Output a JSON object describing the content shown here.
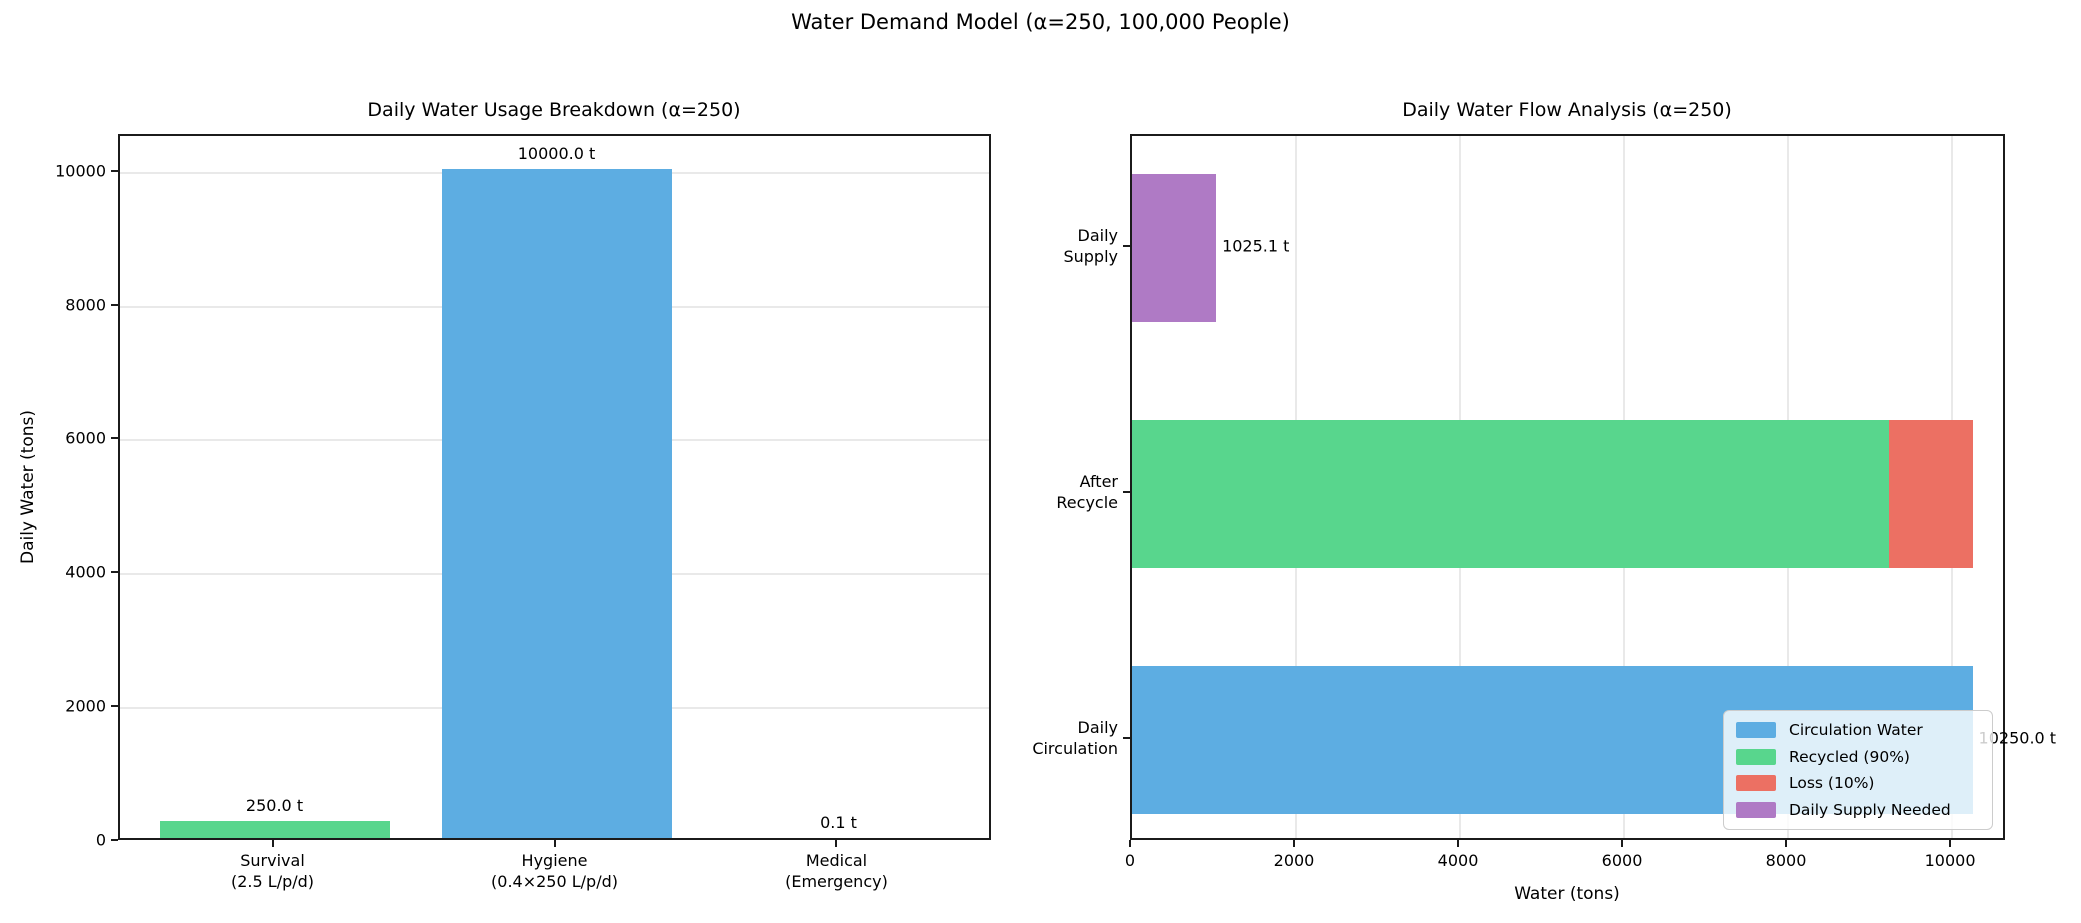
{
  "figure": {
    "title": "Water Demand Model (α=250, 100,000 People)",
    "background": "#ffffff"
  },
  "colors": {
    "blue": "#5DADE2",
    "green": "#58D68D",
    "red": "#EC7063",
    "purple": "#AF7AC5",
    "grid": "#e9e9e9",
    "spine": "#1b1b1b"
  },
  "chart_data": [
    {
      "type": "bar",
      "title": "Daily Water Usage Breakdown (α=250)",
      "xlabel": "",
      "ylabel": "Daily Water (tons)",
      "categories": [
        "Survival\n(2.5 L/p/d)",
        "Hygiene\n(0.4×250 L/p/d)",
        "Medical\n(Emergency)"
      ],
      "values": [
        250.0,
        10000.0,
        0.1
      ],
      "bar_labels": [
        "250.0 t",
        "10000.0 t",
        "0.1 t"
      ],
      "bar_colors": [
        "#58D68D",
        "#5DADE2",
        "#EC7063"
      ],
      "yticks": [
        0,
        2000,
        4000,
        6000,
        8000,
        10000
      ],
      "ylim": [
        0,
        10550
      ],
      "grid": "horizontal",
      "legend": null
    },
    {
      "type": "barh-stacked",
      "title": "Daily Water Flow Analysis (α=250)",
      "xlabel": "Water (tons)",
      "ylabel": "",
      "rows": [
        {
          "category": "Daily\nSupply",
          "segments": [
            {
              "label": "Daily Supply Needed",
              "value": 1025.1,
              "color": "#AF7AC5"
            }
          ],
          "value_label": "1025.1 t"
        },
        {
          "category": "After\nRecycle",
          "segments": [
            {
              "label": "Recycled (90%)",
              "value": 9225.0,
              "color": "#58D68D"
            },
            {
              "label": "Loss (10%)",
              "value": 1025.0,
              "color": "#EC7063"
            }
          ],
          "value_label": ""
        },
        {
          "category": "Daily\nCirculation",
          "segments": [
            {
              "label": "Circulation Water",
              "value": 10250.0,
              "color": "#5DADE2"
            }
          ],
          "value_label": "10250.0 t"
        }
      ],
      "xticks": [
        0,
        2000,
        4000,
        6000,
        8000,
        10000
      ],
      "xlim": [
        0,
        10670
      ],
      "grid": "vertical",
      "legend": {
        "position": "lower right",
        "entries": [
          {
            "label": "Circulation Water",
            "color": "#5DADE2"
          },
          {
            "label": "Recycled (90%)",
            "color": "#58D68D"
          },
          {
            "label": "Loss (10%)",
            "color": "#EC7063"
          },
          {
            "label": "Daily Supply Needed",
            "color": "#AF7AC5"
          }
        ]
      }
    }
  ]
}
